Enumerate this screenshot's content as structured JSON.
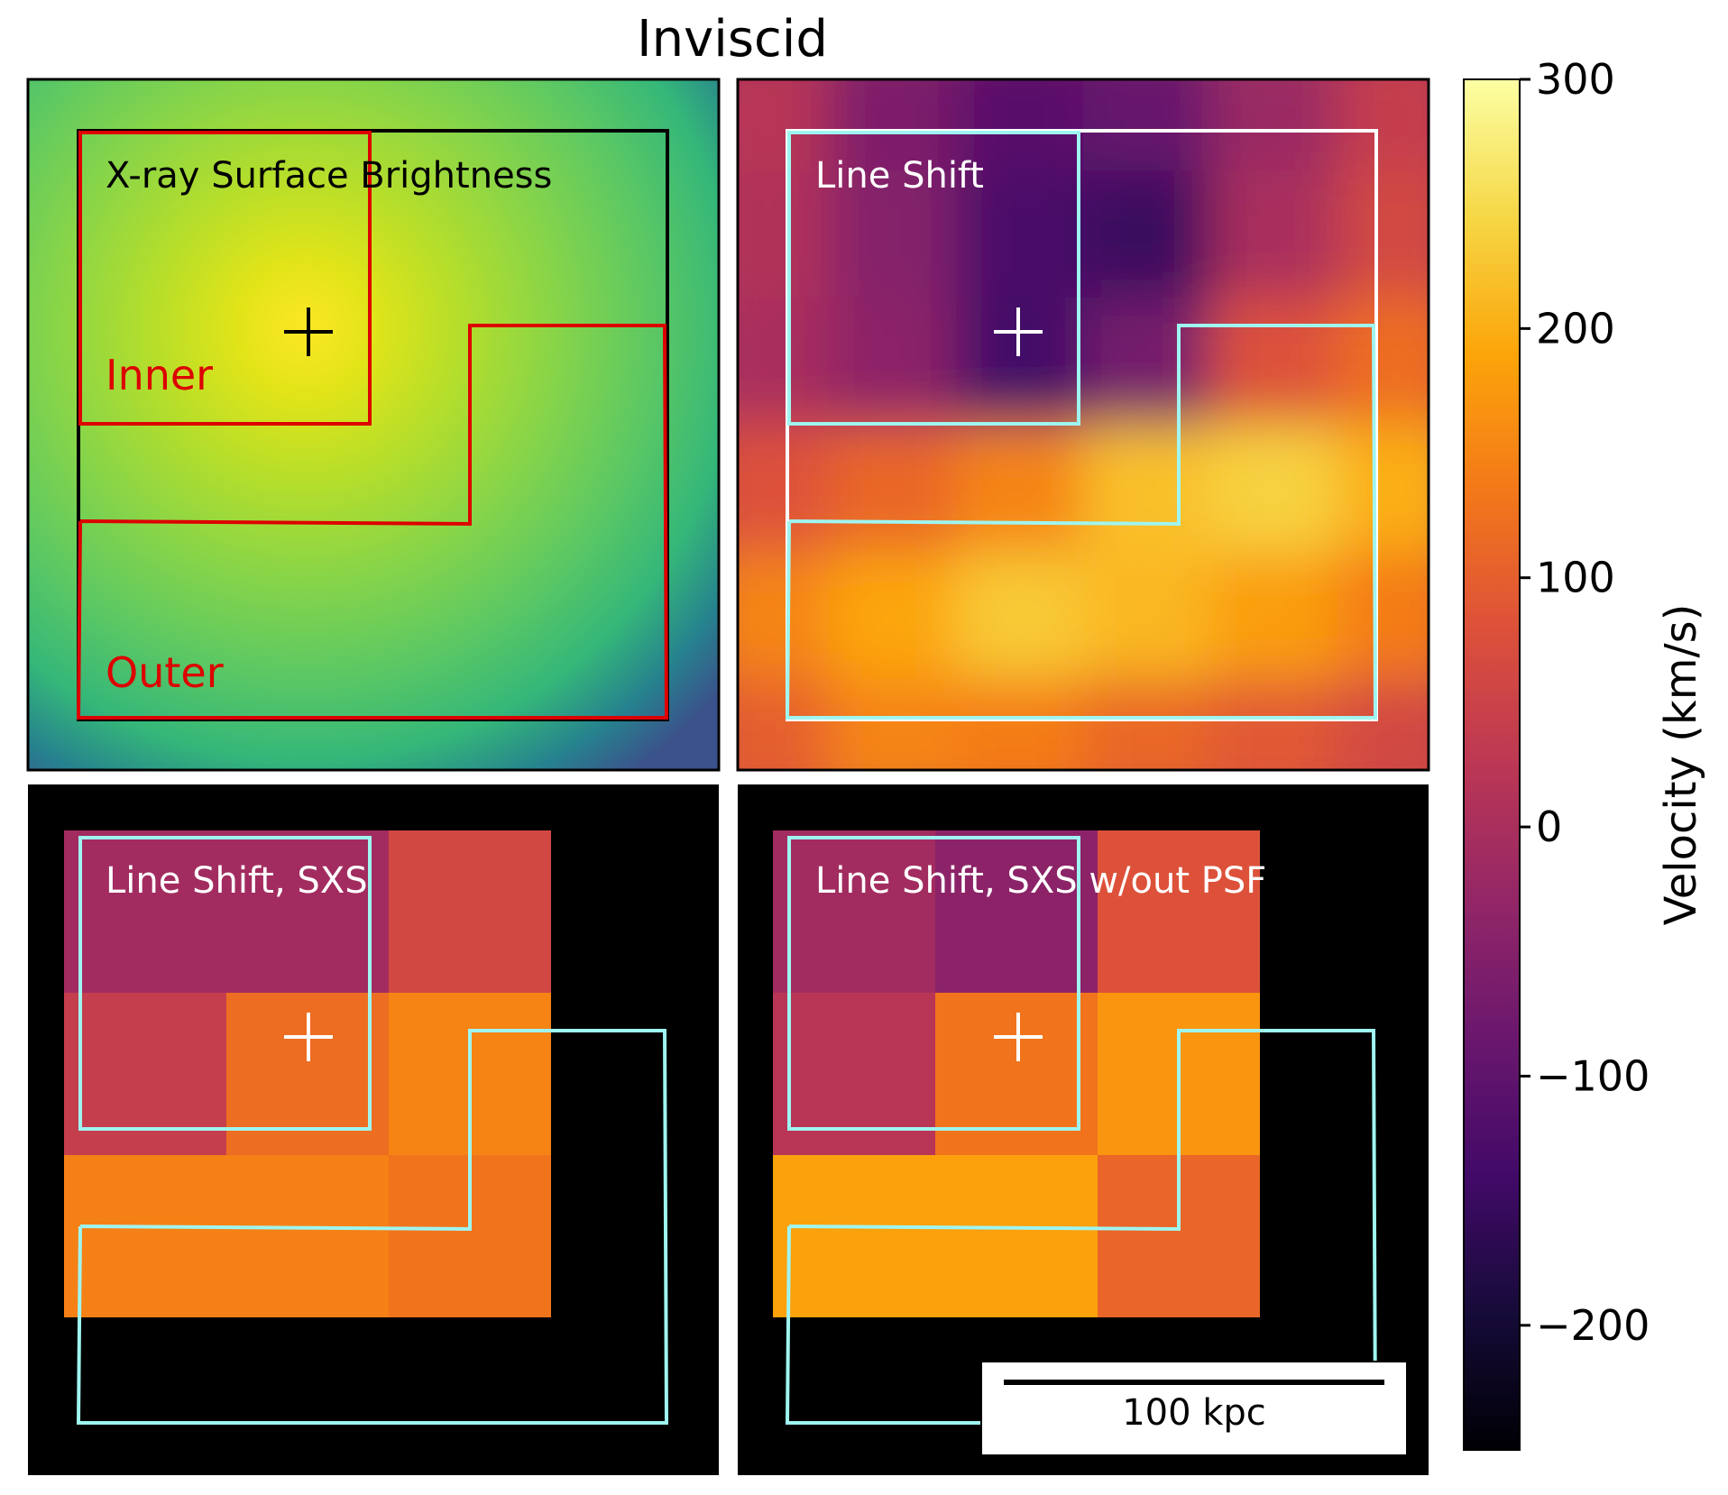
{
  "chart_data": {
    "type": "heatmap",
    "title": "Inviscid",
    "colors": {
      "inner_region": "#dd0000",
      "outer_region": "#dd0000",
      "sxs_region": "#9ff5f0",
      "field_black": "#000000",
      "field_white": "#ffffff"
    },
    "panels": [
      {
        "label": "X-ray Surface Brightness",
        "colormap": "viridis",
        "regions": [
          {
            "name": "Inner"
          },
          {
            "name": "Outer"
          }
        ]
      },
      {
        "label": "Line Shift",
        "colormap": "inferno",
        "velocity_kms_approx": [
          [
            20,
            -60,
            -110,
            -90,
            -20,
            40
          ],
          [
            10,
            -50,
            -130,
            -150,
            0,
            60
          ],
          [
            0,
            -40,
            -140,
            -70,
            80,
            120
          ],
          [
            80,
            110,
            150,
            220,
            240,
            200
          ],
          [
            150,
            190,
            230,
            210,
            180,
            140
          ],
          [
            100,
            150,
            140,
            110,
            90,
            60
          ]
        ]
      },
      {
        "label": "Line Shift, SXS",
        "colormap": "inferno",
        "grid": [
          [
            -10,
            -10,
            60
          ],
          [
            40,
            120,
            150
          ],
          [
            145,
            145,
            130
          ]
        ]
      },
      {
        "label": "Line Shift, SXS w/out PSF",
        "colormap": "inferno",
        "grid": [
          [
            -10,
            -40,
            80
          ],
          [
            20,
            130,
            170
          ],
          [
            185,
            185,
            110
          ]
        ],
        "scalebar_label": "100 kpc"
      }
    ],
    "colorbar": {
      "label": "Velocity (km/s)",
      "range": [
        -250,
        300
      ],
      "ticks": [
        300,
        200,
        100,
        0,
        -100,
        -200
      ],
      "tick_labels": [
        "300",
        "200",
        "100",
        "0",
        "−100",
        "−200"
      ]
    }
  }
}
